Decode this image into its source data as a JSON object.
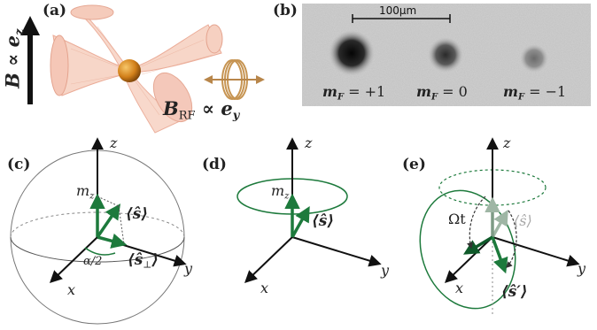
{
  "panels": {
    "a": "(a)",
    "b": "(b)",
    "c": "(c)",
    "d": "(d)",
    "e": "(e)"
  },
  "panel_a": {
    "b_field": "B ∝ e",
    "b_field_sub": "z",
    "rf_field": "B",
    "rf_field_sub": "RF",
    "rf_field_rest": " ∝ e",
    "rf_field_sub2": "y"
  },
  "panel_b": {
    "scale_bar": "100μm",
    "spots": [
      "m_F = +1",
      "m_F = 0",
      "m_F = −1"
    ],
    "spot_labels": [
      {
        "m": "m",
        "sub": "F",
        "rest": " = +1"
      },
      {
        "m": "m",
        "sub": "F",
        "rest": " = 0"
      },
      {
        "m": "m",
        "sub": "F",
        "rest": " = −1"
      }
    ]
  },
  "axes": {
    "x": "x",
    "y": "y",
    "z": "z"
  },
  "panel_c": {
    "mz": "m",
    "mz_sub": "z",
    "s": "⟨ŝ⟩",
    "s_perp": "⟨ŝ",
    "s_perp_sub": "⊥",
    "s_perp_close": "⟩",
    "angle": "α/2"
  },
  "panel_d": {
    "mz": "m",
    "mz_sub": "z",
    "s": "⟨ŝ⟩"
  },
  "panel_e": {
    "omega_t": "Ωt",
    "s_gray": "⟨ŝ⟩",
    "s_prime": "⟨ŝ′⟩"
  },
  "colors": {
    "green": "#1d7a3c",
    "dark_green": "#0f5a2a",
    "beam": "#f2b9a6",
    "atom": "#d98a1a",
    "coil": "#c69452"
  }
}
